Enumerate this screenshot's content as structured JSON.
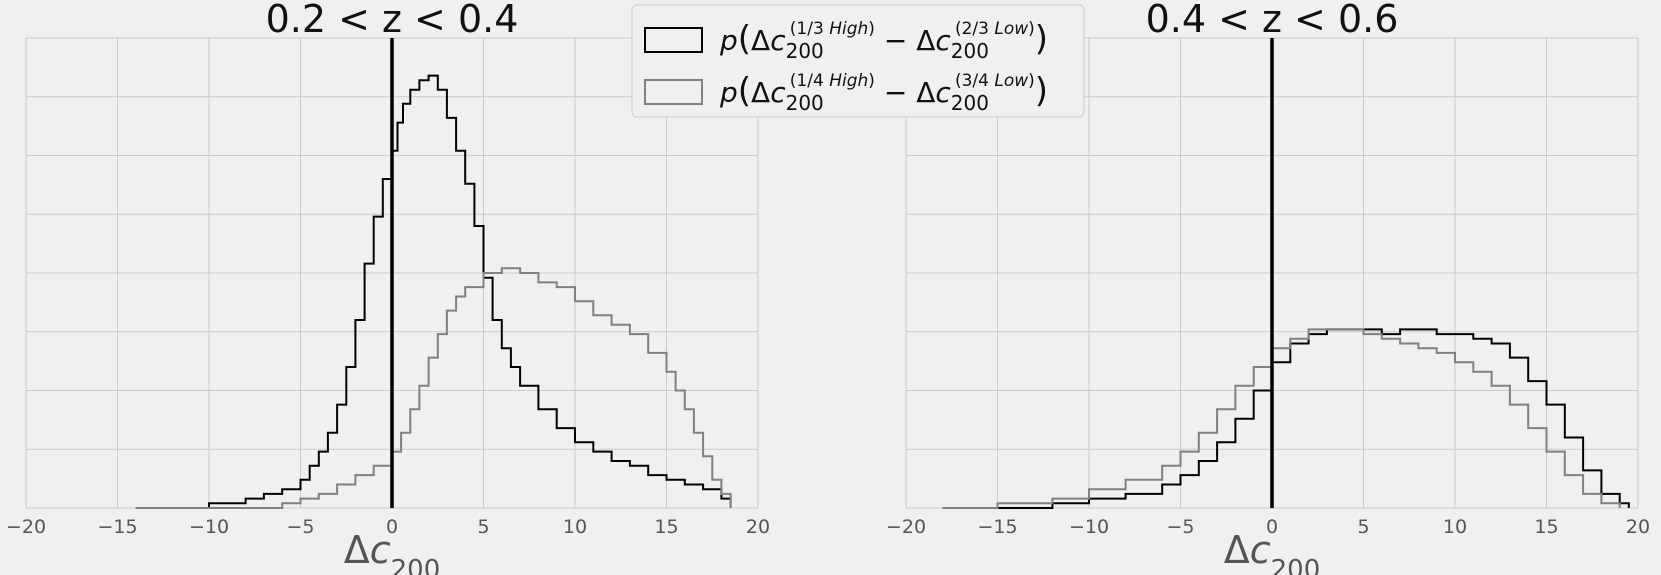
{
  "chart_data": [
    {
      "type": "line",
      "title": "0.2 < z < 0.4",
      "xlabel": "Δc200",
      "ylabel": "",
      "xlim": [
        -20,
        20
      ],
      "xticks": [
        -20,
        -15,
        -10,
        -5,
        0,
        5,
        10,
        15,
        20
      ],
      "grid": true,
      "vline_x": 0,
      "legend_position": "top-right",
      "legend": [
        {
          "math": "p(Δc200^(1/3 High) − Δc200^(2/3 Low))",
          "color": "#000000"
        },
        {
          "math": "p(Δc200^(1/4 High) − Δc200^(3/4 Low))",
          "color": "#808080"
        }
      ],
      "series": [
        {
          "color": "#000000",
          "x": [
            -14,
            -12,
            -10,
            -8,
            -7,
            -6,
            -5,
            -4.5,
            -4,
            -3.5,
            -3,
            -2.5,
            -2,
            -1.5,
            -1,
            -0.5,
            0,
            0.3,
            0.6,
            1,
            1.5,
            2,
            2.5,
            3,
            3.5,
            4,
            4.5,
            5,
            5.5,
            6,
            6.5,
            7,
            8,
            9,
            10,
            11,
            12,
            13,
            14,
            15,
            16,
            17,
            18,
            18.5
          ],
          "values": [
            0.0,
            0.0,
            0.01,
            0.02,
            0.03,
            0.04,
            0.06,
            0.09,
            0.12,
            0.16,
            0.22,
            0.3,
            0.4,
            0.52,
            0.62,
            0.7,
            0.76,
            0.82,
            0.86,
            0.89,
            0.91,
            0.92,
            0.89,
            0.83,
            0.76,
            0.69,
            0.6,
            0.49,
            0.4,
            0.34,
            0.3,
            0.26,
            0.21,
            0.17,
            0.14,
            0.12,
            0.1,
            0.09,
            0.07,
            0.06,
            0.05,
            0.04,
            0.02,
            0.01
          ]
        },
        {
          "color": "#808080",
          "x": [
            -14,
            -10,
            -8,
            -6,
            -5,
            -4,
            -3,
            -2,
            -1,
            0,
            0.5,
            1,
            1.5,
            2,
            2.5,
            3,
            3.5,
            4,
            5,
            6,
            7,
            8,
            9,
            10,
            11,
            12,
            13,
            14,
            15,
            15.5,
            16,
            16.5,
            17,
            17.5,
            18,
            18.5
          ],
          "values": [
            0.0,
            0.0,
            0.0,
            0.01,
            0.02,
            0.03,
            0.05,
            0.07,
            0.09,
            0.12,
            0.16,
            0.21,
            0.26,
            0.32,
            0.37,
            0.42,
            0.45,
            0.47,
            0.5,
            0.51,
            0.5,
            0.48,
            0.47,
            0.44,
            0.41,
            0.39,
            0.37,
            0.33,
            0.29,
            0.25,
            0.21,
            0.16,
            0.11,
            0.06,
            0.03,
            0.0
          ]
        }
      ]
    },
    {
      "type": "line",
      "title": "0.4 < z < 0.6",
      "xlabel": "Δc200",
      "ylabel": "",
      "xlim": [
        -20,
        20
      ],
      "xticks": [
        -20,
        -15,
        -10,
        -5,
        0,
        5,
        10,
        15,
        20
      ],
      "grid": true,
      "vline_x": 0,
      "series": [
        {
          "color": "#000000",
          "x": [
            -18,
            -15,
            -12,
            -10,
            -8,
            -6,
            -5,
            -4,
            -3,
            -2,
            -1,
            0,
            1,
            2,
            3,
            4,
            5,
            6,
            7,
            8,
            9,
            10,
            11,
            12,
            13,
            14,
            15,
            16,
            17,
            18,
            19,
            19.5
          ],
          "values": [
            0.0,
            0.0,
            0.01,
            0.02,
            0.03,
            0.05,
            0.07,
            0.1,
            0.14,
            0.19,
            0.25,
            0.31,
            0.35,
            0.37,
            0.38,
            0.38,
            0.38,
            0.37,
            0.38,
            0.38,
            0.37,
            0.37,
            0.36,
            0.35,
            0.32,
            0.27,
            0.22,
            0.15,
            0.08,
            0.03,
            0.01,
            0.0
          ]
        },
        {
          "color": "#808080",
          "x": [
            -18,
            -15,
            -12,
            -10,
            -8,
            -6,
            -5,
            -4,
            -3,
            -2,
            -1,
            0,
            1,
            2,
            3,
            4,
            5,
            6,
            7,
            8,
            9,
            10,
            11,
            12,
            13,
            14,
            15,
            16,
            17,
            18,
            19
          ],
          "values": [
            0.0,
            0.01,
            0.02,
            0.04,
            0.06,
            0.09,
            0.12,
            0.16,
            0.21,
            0.26,
            0.3,
            0.34,
            0.36,
            0.38,
            0.38,
            0.38,
            0.37,
            0.36,
            0.35,
            0.34,
            0.33,
            0.31,
            0.29,
            0.26,
            0.22,
            0.17,
            0.12,
            0.07,
            0.03,
            0.01,
            0.0
          ]
        }
      ]
    }
  ]
}
